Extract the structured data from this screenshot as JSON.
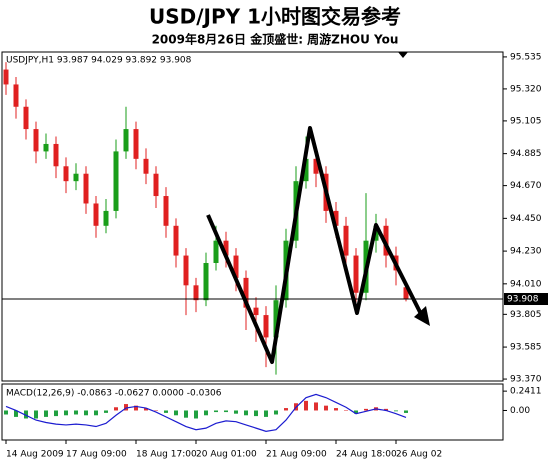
{
  "chart_data": {
    "type": "candlestick",
    "title": "USD/JPY 1小时图交易参考",
    "subtitle": "2009年8月26日 金顶盛世: 周游ZHOU You",
    "header": "USDJPY,H1 93.987 94.029 93.892 93.908",
    "x": [
      0,
      1,
      2,
      3,
      4,
      5,
      6,
      7,
      8,
      9,
      10,
      11,
      12,
      13,
      14,
      15,
      16,
      17,
      18,
      19,
      20,
      21,
      22,
      23,
      24,
      25,
      26,
      27,
      28,
      29,
      30,
      31,
      32,
      33,
      34,
      35,
      36,
      37,
      38,
      39,
      40
    ],
    "open": [
      95.45,
      95.35,
      95.2,
      95.05,
      94.9,
      94.95,
      94.8,
      94.7,
      94.75,
      94.55,
      94.4,
      94.5,
      94.9,
      95.05,
      94.85,
      94.75,
      94.6,
      94.4,
      94.2,
      94.0,
      93.9,
      94.15,
      94.3,
      94.2,
      94.05,
      93.85,
      93.8,
      93.65,
      93.9,
      94.3,
      94.7,
      94.85,
      94.75,
      94.5,
      94.4,
      94.2,
      93.95,
      94.3,
      94.4,
      94.2,
      93.987
    ],
    "high": [
      95.5,
      95.4,
      95.25,
      95.1,
      95.02,
      95.0,
      94.86,
      94.82,
      94.8,
      94.6,
      94.58,
      94.98,
      95.2,
      95.1,
      94.92,
      94.8,
      94.66,
      94.45,
      94.25,
      94.05,
      94.22,
      94.4,
      94.36,
      94.25,
      94.1,
      93.92,
      93.86,
      94.0,
      94.38,
      94.8,
      95.0,
      94.92,
      94.8,
      94.56,
      94.46,
      94.25,
      94.62,
      94.48,
      94.45,
      94.26,
      94.029
    ],
    "low": [
      95.28,
      95.12,
      94.98,
      94.82,
      94.85,
      94.72,
      94.62,
      94.64,
      94.48,
      94.32,
      94.35,
      94.45,
      94.85,
      94.78,
      94.68,
      94.52,
      94.32,
      94.12,
      93.8,
      93.82,
      93.86,
      94.1,
      94.12,
      93.96,
      93.7,
      93.62,
      93.45,
      93.4,
      93.85,
      94.25,
      94.65,
      94.66,
      94.42,
      94.32,
      94.1,
      93.85,
      93.9,
      94.22,
      94.12,
      94.0,
      93.892
    ],
    "close": [
      95.35,
      95.2,
      95.05,
      94.9,
      94.95,
      94.8,
      94.7,
      94.75,
      94.55,
      94.4,
      94.5,
      94.9,
      95.05,
      94.85,
      94.75,
      94.6,
      94.4,
      94.2,
      94.0,
      93.9,
      94.15,
      94.3,
      94.2,
      94.05,
      93.85,
      93.8,
      93.65,
      93.9,
      94.3,
      94.7,
      94.85,
      94.75,
      94.5,
      94.4,
      94.2,
      93.95,
      94.3,
      94.4,
      94.2,
      94.1,
      93.908
    ],
    "up_color": "#1a9e1a",
    "down_color": "#e02020",
    "last_price": 93.908,
    "xlim": [
      -0.4,
      49.7
    ],
    "ylim": [
      93.357,
      95.568
    ],
    "yticks": [
      95.535,
      {
        "value": 95.32,
        "label": "95.320"
      },
      95.105,
      94.885,
      {
        "value": 94.67,
        "label": "94.670"
      },
      {
        "value": 94.45,
        "label": "94.450"
      },
      {
        "value": 94.23,
        "label": "94.230"
      },
      {
        "value": 94.01,
        "label": "94.010"
      },
      93.805,
      93.585,
      {
        "value": 93.37,
        "label": "93.370"
      }
    ],
    "xticks": [
      {
        "value": 0,
        "label": "14 Aug 2009"
      },
      {
        "value": 6,
        "label": "17 Aug 09:00"
      },
      {
        "value": 13,
        "label": "18 Aug 17:00"
      },
      {
        "value": 19,
        "label": "20 Aug 01:00"
      },
      {
        "value": 26,
        "label": "21 Aug 09:00"
      },
      {
        "value": 33,
        "label": "24 Aug 18:00"
      },
      {
        "value": 39,
        "label": "26 Aug 02"
      }
    ],
    "macd": {
      "label": "MACD(12,26,9) -0.0863 -0.0627 0.0000 -0.0306",
      "ylim": [
        -0.368,
        0.33
      ],
      "yticks": [
        0.2411,
        {
          "value": 0,
          "label": "0.00"
        }
      ],
      "histogram": [
        -0.05,
        -0.08,
        -0.1,
        -0.1,
        -0.08,
        -0.07,
        -0.06,
        -0.05,
        -0.06,
        -0.06,
        -0.03,
        0.04,
        0.08,
        0.06,
        0.03,
        0,
        -0.03,
        -0.06,
        -0.09,
        -0.1,
        -0.06,
        -0.02,
        -0.02,
        -0.04,
        -0.06,
        -0.07,
        -0.08,
        -0.05,
        0.03,
        0.09,
        0.12,
        0.1,
        0.06,
        0.03,
        0,
        -0.04,
        0.02,
        0.04,
        0.02,
        -0.01,
        -0.0306
      ],
      "line": [
        0.05,
        0,
        -0.06,
        -0.12,
        -0.15,
        -0.17,
        -0.18,
        -0.17,
        -0.18,
        -0.2,
        -0.16,
        -0.06,
        0.03,
        0.05,
        0.03,
        -0.02,
        -0.08,
        -0.14,
        -0.2,
        -0.24,
        -0.22,
        -0.16,
        -0.13,
        -0.14,
        -0.18,
        -0.22,
        -0.26,
        -0.24,
        -0.12,
        0.04,
        0.16,
        0.2,
        0.16,
        0.1,
        0.04,
        -0.04,
        -0.01,
        0.02,
        0,
        -0.04,
        -0.0863
      ],
      "line_color": "#1c1cd0",
      "pos_color": "#e03030",
      "neg_color": "#20a040"
    }
  }
}
